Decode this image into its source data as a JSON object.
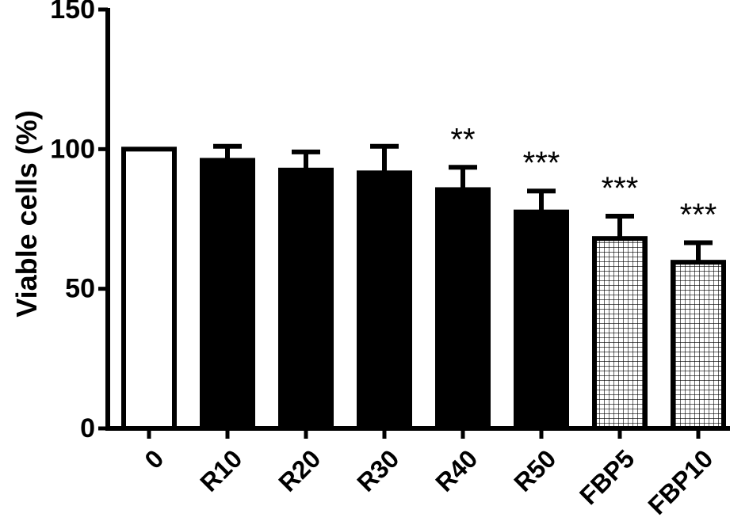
{
  "chart_data": {
    "type": "bar",
    "title": "",
    "xlabel": "",
    "ylabel": "Viable cells (%)",
    "ylim": [
      0,
      150
    ],
    "yticks": [
      0,
      50,
      100,
      150
    ],
    "grid": false,
    "categories": [
      "0",
      "R10",
      "R20",
      "R30",
      "R40",
      "R50",
      "FBP5",
      "FBP10"
    ],
    "values": [
      100,
      96,
      92.5,
      91.5,
      85.5,
      77.5,
      68,
      59.5
    ],
    "errors": [
      0,
      5,
      6.5,
      9.5,
      8,
      7.5,
      8,
      7
    ],
    "fills": [
      "white",
      "black",
      "black",
      "black",
      "black",
      "black",
      "grid",
      "grid"
    ],
    "significance": [
      "",
      "",
      "",
      "",
      "**",
      "***",
      "***",
      "***"
    ]
  },
  "colors": {
    "axis": "#000000",
    "bar_solid": "#000000",
    "bar_open": "#ffffff",
    "hatch_line": "#000000"
  }
}
